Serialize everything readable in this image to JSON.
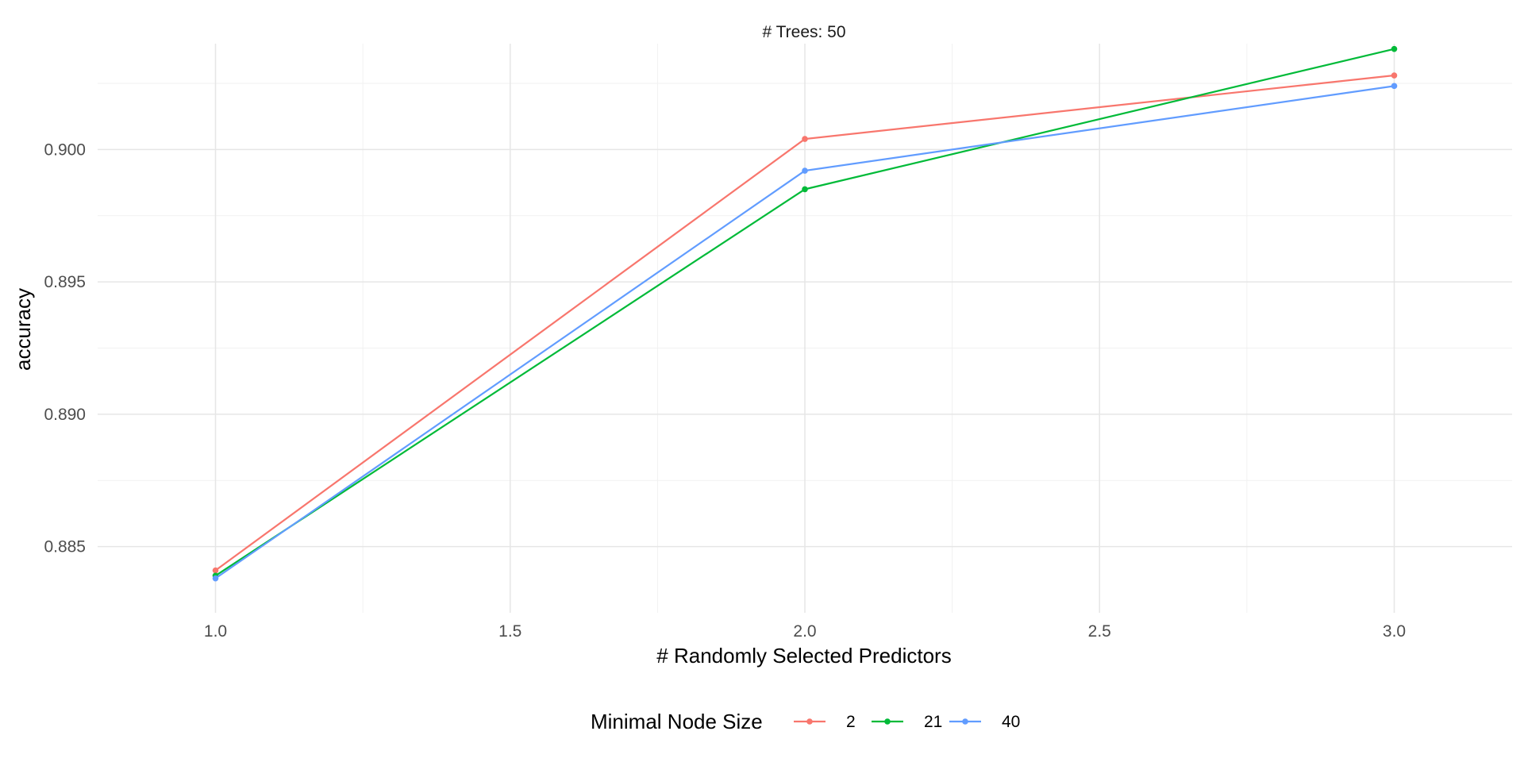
{
  "chart_data": {
    "type": "line",
    "title": "# Trees: 50",
    "xlabel": "# Randomly Selected Predictors",
    "ylabel": "accuracy",
    "x": [
      1.0,
      2.0,
      3.0
    ],
    "xlim": [
      0.8,
      3.2
    ],
    "ylim": [
      0.8825,
      0.904
    ],
    "x_ticks": [
      1.0,
      1.5,
      2.0,
      2.5,
      3.0
    ],
    "x_tick_labels": [
      "1.0",
      "1.5",
      "2.0",
      "2.5",
      "3.0"
    ],
    "y_ticks": [
      0.885,
      0.89,
      0.895,
      0.9
    ],
    "y_tick_labels": [
      "0.885",
      "0.890",
      "0.895",
      "0.900"
    ],
    "grid": true,
    "legend": {
      "title": "Minimal Node Size",
      "position": "bottom"
    },
    "series": [
      {
        "name": "2",
        "color": "#F8766D",
        "values": [
          0.8841,
          0.9004,
          0.9028
        ]
      },
      {
        "name": "21",
        "color": "#00BA38",
        "values": [
          0.8839,
          0.8985,
          0.9038
        ]
      },
      {
        "name": "40",
        "color": "#619CFF",
        "values": [
          0.8838,
          0.8992,
          0.9024
        ]
      }
    ]
  }
}
